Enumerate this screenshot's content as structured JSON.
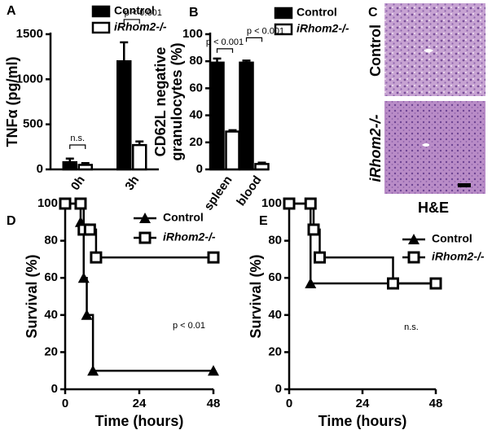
{
  "chart_data": [
    {
      "type": "bar",
      "panel": "A",
      "ylabel": [
        "TNFα (pg/ml)"
      ],
      "categories": [
        "0h",
        "3h"
      ],
      "series": [
        {
          "name": "Control",
          "color": "#000000",
          "values": [
            80,
            1200
          ],
          "errors": [
            40,
            210
          ]
        },
        {
          "name": "iRhom2-/-",
          "color": "#ffffff",
          "values": [
            50,
            270
          ],
          "errors": [
            20,
            40
          ]
        }
      ],
      "annotations": [
        "n.s.",
        "p < 0.001"
      ],
      "ylim": [
        0,
        1500
      ],
      "yticks": [
        0,
        500,
        1000,
        1500
      ]
    },
    {
      "type": "bar",
      "panel": "B",
      "ylabel": [
        "CD62L negative",
        "granulocytes (%)"
      ],
      "categories": [
        "spleen",
        "blood"
      ],
      "series": [
        {
          "name": "Control",
          "color": "#000000",
          "values": [
            79,
            79
          ],
          "errors": [
            3,
            1.5
          ]
        },
        {
          "name": "iRhom2-/-",
          "color": "#ffffff",
          "values": [
            28,
            4
          ],
          "errors": [
            1,
            1
          ]
        }
      ],
      "annotations": [
        "p < 0.001",
        "p < 0.001"
      ],
      "ylim": [
        0,
        100
      ],
      "yticks": [
        0,
        20,
        40,
        60,
        80,
        100
      ]
    },
    {
      "type": "line",
      "panel": "D",
      "ylabel": [
        "Survival (%)"
      ],
      "xlabel": "Time (hours)",
      "series": [
        {
          "name": "Control",
          "color": "#000000",
          "marker": "triangle",
          "x": [
            0,
            5,
            6,
            7,
            9,
            48
          ],
          "values": [
            100,
            90,
            60,
            40,
            10,
            10
          ]
        },
        {
          "name": "iRhom2-/-",
          "color": "#ffffff",
          "marker": "square",
          "x": [
            0,
            5,
            6,
            8,
            10,
            48
          ],
          "values": [
            100,
            100,
            86,
            86,
            71,
            71
          ]
        }
      ],
      "annotation": "p < 0.01",
      "xlim": [
        0,
        48
      ],
      "xticks": [
        0,
        24,
        48
      ],
      "ylim": [
        0,
        100
      ],
      "yticks": [
        0,
        20,
        40,
        60,
        80,
        100
      ]
    },
    {
      "type": "line",
      "panel": "E",
      "ylabel": [
        "Survival (%)"
      ],
      "xlabel": "Time (hours)",
      "series": [
        {
          "name": "Control",
          "color": "#000000",
          "marker": "triangle",
          "x": [
            0,
            7,
            48
          ],
          "values": [
            100,
            57,
            57
          ]
        },
        {
          "name": "iRhom2-/-",
          "color": "#ffffff",
          "marker": "square",
          "x": [
            0,
            7,
            8,
            10,
            34,
            48
          ],
          "values": [
            100,
            100,
            86,
            71,
            57,
            57
          ]
        }
      ],
      "annotation": "n.s.",
      "xlim": [
        0,
        48
      ],
      "xticks": [
        0,
        24,
        48
      ],
      "ylim": [
        0,
        100
      ],
      "yticks": [
        0,
        20,
        40,
        60,
        80,
        100
      ]
    }
  ],
  "micrographs": {
    "panel": "C",
    "labels": [
      "Control",
      "iRhom2-/-"
    ],
    "stain": "H&E"
  }
}
